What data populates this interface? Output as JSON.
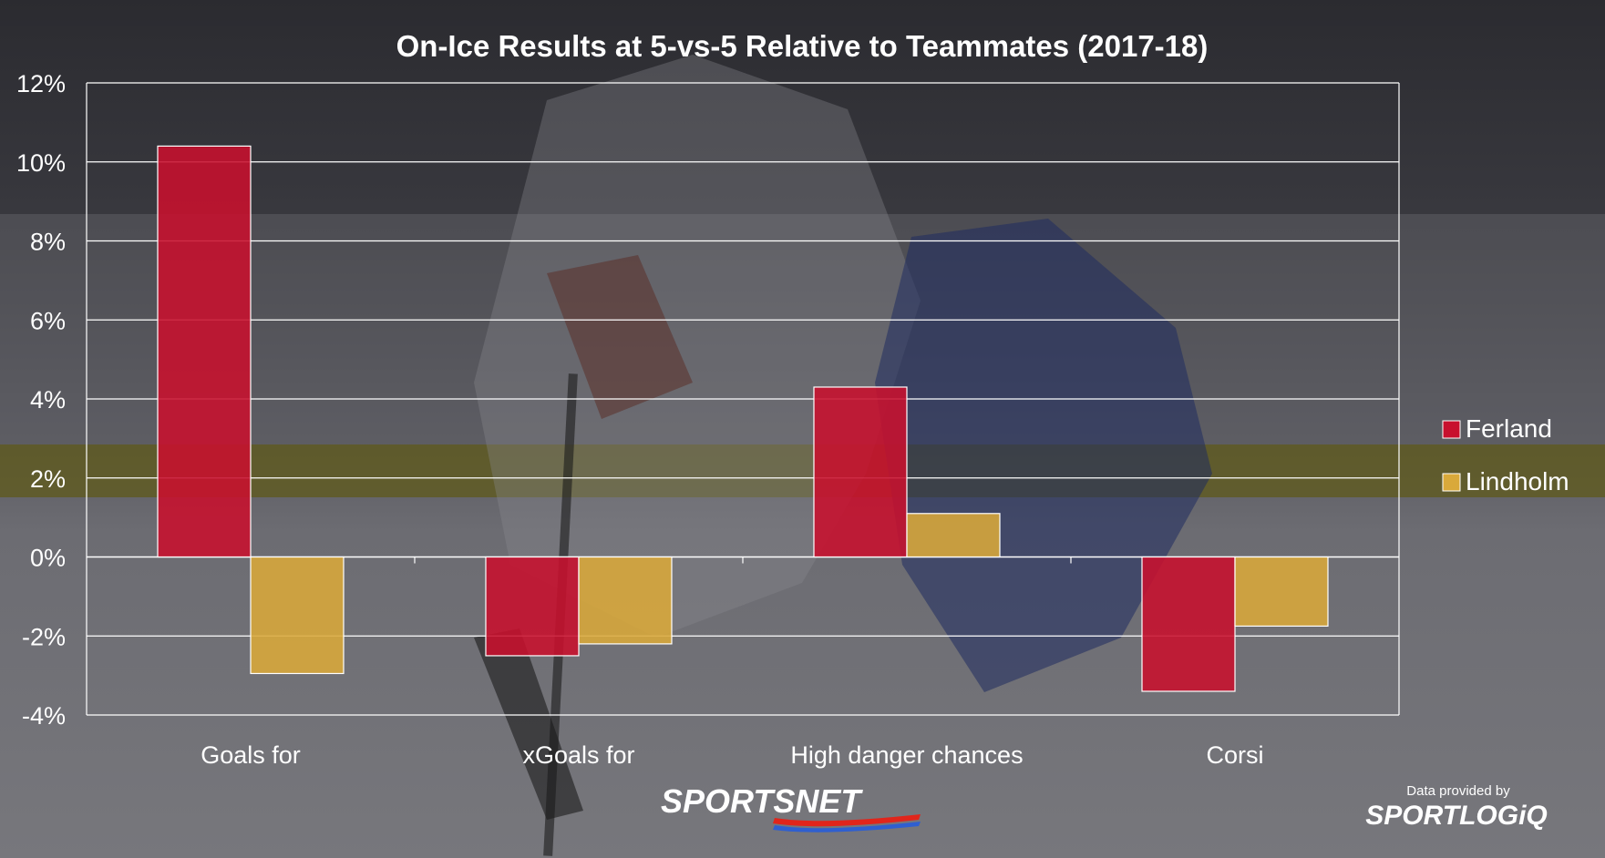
{
  "chart_data": {
    "type": "bar",
    "title": "On-Ice Results at 5-vs-5 Relative to Teammates (2017-18)",
    "categories": [
      "Goals for",
      "xGoals for",
      "High danger chances",
      "Corsi"
    ],
    "series": [
      {
        "name": "Ferland",
        "values": [
          10.4,
          -2.5,
          4.3,
          -3.4
        ],
        "color": "#c8102e"
      },
      {
        "name": "Lindholm",
        "values": [
          -2.95,
          -2.2,
          1.1,
          -1.75
        ],
        "color": "#d9a93a"
      }
    ],
    "yticks": [
      "12%",
      "10%",
      "8%",
      "6%",
      "4%",
      "2%",
      "0%",
      "-2%",
      "-4%"
    ],
    "ylim": [
      -4,
      12
    ],
    "ystep": 2,
    "grid": true,
    "legend_position": "right"
  },
  "credits": {
    "network": "SPORTSNET",
    "provider_note": "Data provided by",
    "provider": "SPORTLOGiQ"
  },
  "colors": {
    "background_dark": "#2a2a2e",
    "gridline": "#ffffff",
    "text": "#ffffff",
    "network_accent": "#e1251b"
  }
}
